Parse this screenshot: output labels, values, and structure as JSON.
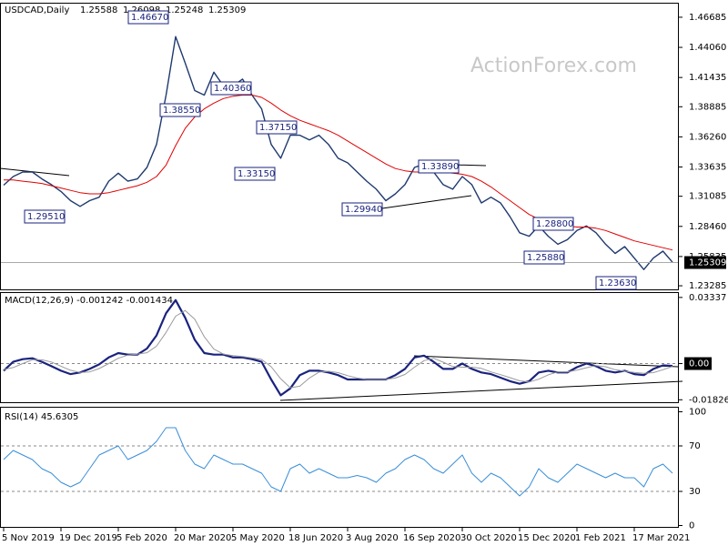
{
  "chart_data": [
    {
      "type": "line",
      "title": "USDCAD,Daily",
      "ohlc": [
        1.25588,
        1.26098,
        1.25248,
        1.25309
      ],
      "watermark": "ActionForex.com",
      "ylim": [
        1.2297,
        1.4787
      ],
      "yticks": [
        1.46685,
        {
          "value": 1.4406,
          "label": "1.44060"
        },
        1.41435,
        1.38885,
        {
          "value": 1.3626,
          "label": "1.36260"
        },
        1.33635,
        1.31085,
        {
          "value": 1.2846,
          "label": "1.28460"
        },
        1.25835,
        1.23285
      ],
      "annotations": [
        "1.46670",
        "1.38550",
        "1.40360",
        "1.37150",
        "1.33150",
        "1.29510",
        "1.29940",
        "1.33890",
        "1.28800",
        "1.25880",
        "1.23630"
      ],
      "series": [
        {
          "name": "USDCAD",
          "color": "#1f3a6e",
          "values": [
            1.3205,
            1.328,
            1.332,
            1.332,
            1.326,
            1.321,
            1.315,
            1.307,
            1.302,
            1.307,
            1.31,
            1.324,
            1.331,
            1.324,
            1.326,
            1.336,
            1.356,
            1.399,
            1.45,
            1.427,
            1.403,
            1.399,
            1.419,
            1.407,
            1.407,
            1.413,
            1.399,
            1.387,
            1.356,
            1.344,
            1.364,
            1.364,
            1.36,
            1.364,
            1.356,
            1.344,
            1.34,
            1.332,
            1.324,
            1.317,
            1.307,
            1.313,
            1.321,
            1.336,
            1.339,
            1.332,
            1.321,
            1.317,
            1.328,
            1.321,
            1.305,
            1.31,
            1.305,
            1.293,
            1.279,
            1.276,
            1.285,
            1.276,
            1.269,
            1.273,
            1.281,
            1.285,
            1.279,
            1.269,
            1.261,
            1.267,
            1.257,
            1.247,
            1.257,
            1.263,
            1.2533
          ]
        },
        {
          "name": "MA",
          "color": "#e00000",
          "values": [
            1.325,
            1.325,
            1.324,
            1.323,
            1.322,
            1.32,
            1.318,
            1.316,
            1.314,
            1.313,
            1.313,
            1.314,
            1.316,
            1.318,
            1.32,
            1.323,
            1.328,
            1.338,
            1.355,
            1.37,
            1.38,
            1.387,
            1.392,
            1.396,
            1.398,
            1.399,
            1.399,
            1.397,
            1.392,
            1.386,
            1.381,
            1.377,
            1.374,
            1.371,
            1.368,
            1.364,
            1.359,
            1.354,
            1.349,
            1.344,
            1.339,
            1.335,
            1.333,
            1.332,
            1.332,
            1.333,
            1.332,
            1.331,
            1.33,
            1.328,
            1.324,
            1.319,
            1.313,
            1.307,
            1.301,
            1.295,
            1.291,
            1.288,
            1.286,
            1.285,
            1.284,
            1.284,
            1.283,
            1.281,
            1.278,
            1.275,
            1.272,
            1.27,
            1.268,
            1.266,
            1.264
          ]
        }
      ]
    },
    {
      "type": "line",
      "title": "MACD(12,26,9) -0.001242 -0.001434",
      "last_label": "0.00",
      "ylim": [
        -0.0195,
        0.0356
      ],
      "yticks": [
        0.03337,
        {
          "value": 0,
          "label": "0.00"
        },
        -0.018262
      ],
      "series": [
        {
          "name": "MACD",
          "color": "#1a237e",
          "values": [
            -0.0036,
            0.0009,
            0.0022,
            0.0027,
            0.0009,
            -0.0013,
            -0.0036,
            -0.0053,
            -0.0045,
            -0.0027,
            -0.0004,
            0.0031,
            0.0053,
            0.0045,
            0.0045,
            0.0076,
            0.0142,
            0.0254,
            0.032,
            0.0231,
            0.012,
            0.0053,
            0.0045,
            0.0045,
            0.0031,
            0.0031,
            0.0022,
            0.0009,
            -0.008,
            -0.016,
            -0.0125,
            -0.0058,
            -0.0036,
            -0.0036,
            -0.0045,
            -0.0058,
            -0.008,
            -0.008,
            -0.008,
            -0.008,
            -0.008,
            -0.0058,
            -0.0027,
            0.0031,
            0.004,
            0.0009,
            -0.0027,
            -0.0027,
            0,
            -0.0027,
            -0.0045,
            -0.0053,
            -0.0071,
            -0.0089,
            -0.0102,
            -0.0089,
            -0.0045,
            -0.0036,
            -0.0045,
            -0.0045,
            -0.0018,
            0,
            -0.0013,
            -0.0036,
            -0.0045,
            -0.0036,
            -0.0053,
            -0.0058,
            -0.0027,
            -0.0009,
            -0.0012
          ]
        },
        {
          "name": "Signal",
          "color": "#9a9a9a",
          "values": [
            -0.003,
            -0.002,
            0,
            0.0019,
            0.0019,
            0.0008,
            -0.0013,
            -0.0034,
            -0.0045,
            -0.0042,
            -0.0025,
            0,
            0.0027,
            0.0043,
            0.0048,
            0.0055,
            0.0088,
            0.0157,
            0.0239,
            0.0268,
            0.0224,
            0.0135,
            0.0073,
            0.0048,
            0.004,
            0.0036,
            0.0028,
            0.0021,
            -0.0016,
            -0.0077,
            -0.0122,
            -0.0114,
            -0.0073,
            -0.0043,
            -0.0039,
            -0.0046,
            -0.0061,
            -0.0073,
            -0.008,
            -0.008,
            -0.008,
            -0.0073,
            -0.0055,
            -0.0018,
            0.0015,
            0.0027,
            0.0007,
            -0.0015,
            -0.0018,
            -0.0018,
            -0.0024,
            -0.0042,
            -0.0056,
            -0.0071,
            -0.0087,
            -0.0093,
            -0.0079,
            -0.0057,
            -0.0042,
            -0.0042,
            -0.0033,
            -0.0021,
            -0.001,
            -0.0016,
            -0.0031,
            -0.0039,
            -0.0045,
            -0.0049,
            -0.0046,
            -0.0031,
            -0.0014
          ]
        }
      ]
    },
    {
      "type": "line",
      "title": "RSI(14) 45.6305",
      "ylim": [
        0,
        100
      ],
      "yticks": [
        100,
        70,
        30,
        0
      ],
      "levels": [
        70,
        30
      ],
      "categories": [
        "5 Nov 2019",
        null,
        null,
        null,
        null,
        null,
        "19 Dec 2019",
        null,
        null,
        null,
        null,
        null,
        "5 Feb 2020",
        null,
        null,
        null,
        null,
        null,
        "20 Mar 2020",
        null,
        null,
        null,
        null,
        null,
        "5 May 2020",
        null,
        null,
        null,
        null,
        null,
        "18 Jun 2020",
        null,
        null,
        null,
        null,
        null,
        "3 Aug 2020",
        null,
        null,
        null,
        null,
        null,
        "16 Sep 2020",
        null,
        null,
        null,
        null,
        null,
        "30 Oct 2020",
        null,
        null,
        null,
        null,
        null,
        "15 Dec 2020",
        null,
        null,
        null,
        null,
        null,
        "1 Feb 2021",
        null,
        null,
        null,
        null,
        null,
        "17 Mar 2021",
        null,
        null,
        null,
        null
      ],
      "series": [
        {
          "name": "RSI",
          "color": "#3a8fd8",
          "values": [
            58,
            66,
            62,
            58,
            50,
            46,
            38,
            34,
            38,
            50,
            62,
            66,
            70,
            58,
            62,
            66,
            74,
            86,
            86,
            66,
            54,
            50,
            62,
            58,
            54,
            54,
            50,
            46,
            34,
            30,
            50,
            54,
            46,
            50,
            46,
            42,
            42,
            44,
            42,
            38,
            46,
            50,
            58,
            62,
            58,
            50,
            46,
            54,
            62,
            46,
            38,
            46,
            42,
            34,
            26,
            34,
            50,
            42,
            38,
            46,
            54,
            50,
            46,
            42,
            46,
            42,
            42,
            34,
            50,
            54,
            46
          ]
        }
      ]
    }
  ]
}
